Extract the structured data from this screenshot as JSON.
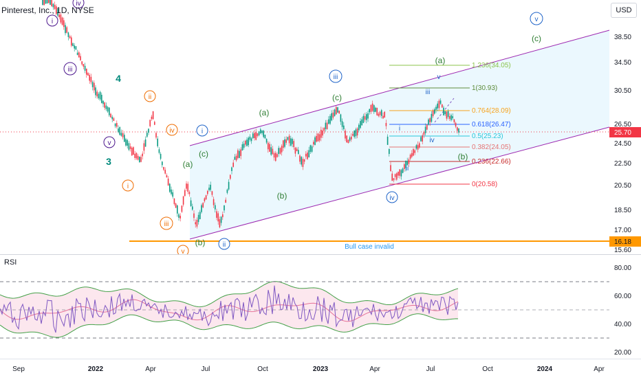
{
  "header": {
    "symbol": "Pinterest, Inc., 1D, NYSE",
    "currency": "USD"
  },
  "price_axis": {
    "labels": [
      "38.50",
      "34.50",
      "30.50",
      "26.50",
      "24.50",
      "22.50",
      "20.50",
      "18.50",
      "17.00",
      "15.60"
    ]
  },
  "current_price": "25.70",
  "invalid_level": {
    "value": "16.18",
    "text": "Bull case invalid"
  },
  "fib_levels": [
    {
      "label": "1.236(34.05)",
      "color": "#8bc34a"
    },
    {
      "label": "1(30.93)",
      "color": "#5d8c3a"
    },
    {
      "label": "0.764(28.09)",
      "color": "#f7a21b"
    },
    {
      "label": "0.618(26.47)",
      "color": "#2962ff"
    },
    {
      "label": "0.5(25.23)",
      "color": "#26c6da"
    },
    {
      "label": "0.382(24.05)",
      "color": "#e57373"
    },
    {
      "label": "0.236(22.66)",
      "color": "#c62828"
    },
    {
      "label": "0(20.58)",
      "color": "#f23645"
    }
  ],
  "wave_labels": {
    "purple_iv": "iv",
    "purple_i": "i",
    "purple_iii": "iii",
    "purple_v": "v",
    "teal_4": "4",
    "teal_3": "3",
    "orange_ii": "ii",
    "orange_iv": "iv",
    "orange_i": "i",
    "orange_iii": "iii",
    "orange_v": "v",
    "blue_i": "i",
    "blue_ii": "ii",
    "blue_iii": "iii",
    "blue_iv": "iv",
    "blue_v": "v",
    "green_a1": "(a)",
    "green_c1": "(c)",
    "green_b1": "(b)",
    "green_a2": "(a)",
    "green_b2": "(b)",
    "green_c2": "(c)",
    "green_a3": "(a)",
    "green_b3": "(b)",
    "green_c3": "(c)",
    "inner_i": "i",
    "inner_ii": "ii",
    "inner_iii": "iii",
    "inner_iv": "iv",
    "inner_v": "v"
  },
  "rsi": {
    "title": "RSI",
    "axis_labels": [
      "80.00",
      "60.00",
      "40.00",
      "20.00"
    ]
  },
  "time_axis": {
    "labels": [
      "Sep",
      "2022",
      "Apr",
      "Jul",
      "Oct",
      "2023",
      "Apr",
      "Jul",
      "Oct",
      "2024",
      "Apr"
    ]
  },
  "colors": {
    "channel": "#9c27b0",
    "channel_fill": "#e1f5fe",
    "invalid": "#ff9800",
    "price_badge": "#f23645",
    "rsi_line": "#7e57c2",
    "rsi_band": "#fce4ec",
    "rsi_bb": "#43a047"
  }
}
